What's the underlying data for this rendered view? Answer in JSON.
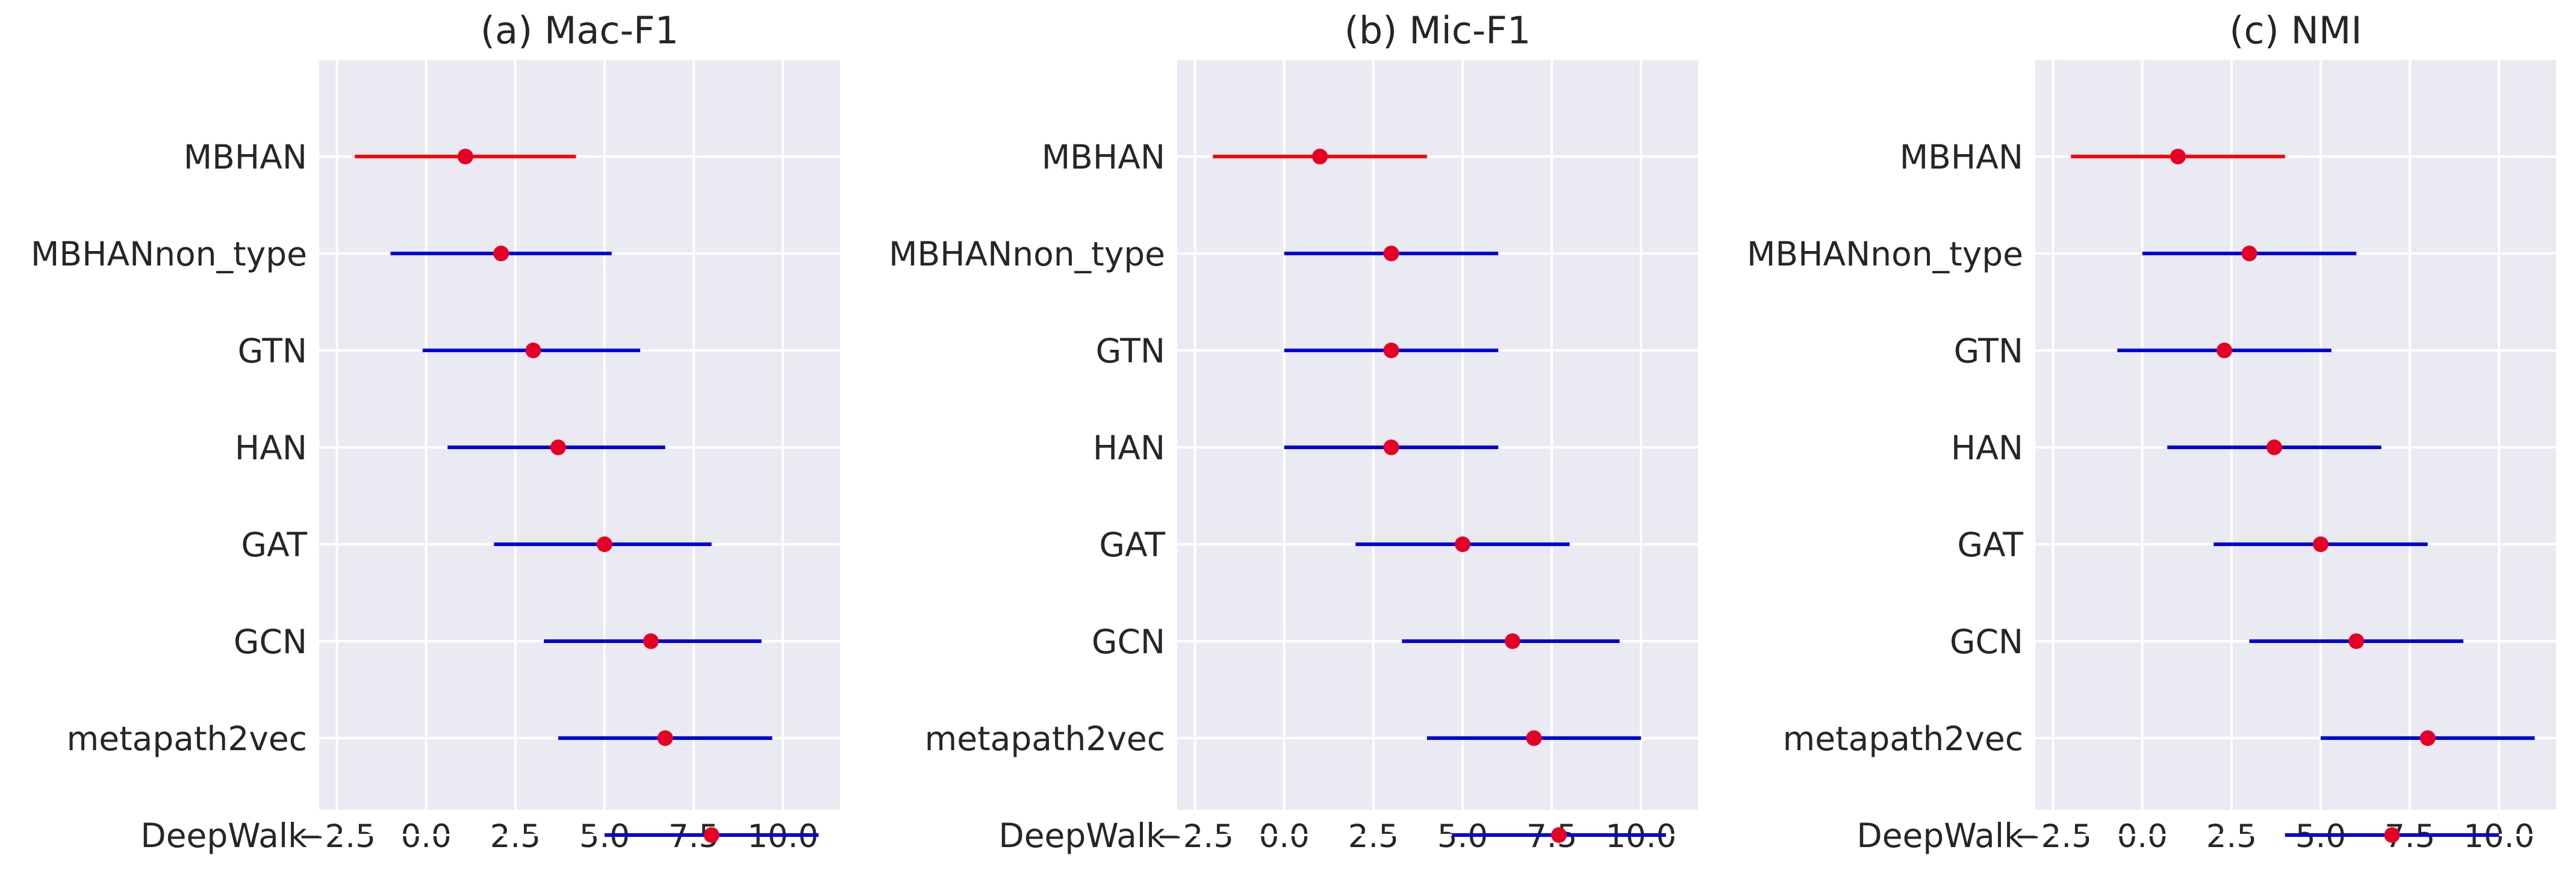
{
  "colors": {
    "panel_bg": "#eaeaf2",
    "grid": "#ffffff",
    "highlight": "#ff0000",
    "errorbar": "#0000dd",
    "point": "#e60026",
    "text": "#262626"
  },
  "chart_data": [
    {
      "type": "errorbar",
      "title": "(a) Mac-F1",
      "xlim": [
        -3.0,
        11.6
      ],
      "xticks": [
        -2.5,
        0.0,
        2.5,
        5.0,
        7.5,
        10.0
      ],
      "xtick_labels": [
        "−2.5",
        "0.0",
        "2.5",
        "5.0",
        "7.5",
        "10.0"
      ],
      "highlight": "MBHAN",
      "points": [
        {
          "label": "MBHAN",
          "center": 1.1,
          "low": -2.0,
          "high": 4.2
        },
        {
          "label": "MBHANnon_type",
          "center": 2.1,
          "low": -1.0,
          "high": 5.2
        },
        {
          "label": "GTN",
          "center": 3.0,
          "low": -0.1,
          "high": 6.0
        },
        {
          "label": "HAN",
          "center": 3.7,
          "low": 0.6,
          "high": 6.7
        },
        {
          "label": "GAT",
          "center": 5.0,
          "low": 1.9,
          "high": 8.0
        },
        {
          "label": "GCN",
          "center": 6.3,
          "low": 3.3,
          "high": 9.4
        },
        {
          "label": "metapath2vec",
          "center": 6.7,
          "low": 3.7,
          "high": 9.7
        },
        {
          "label": "DeepWalk",
          "center": 8.0,
          "low": 5.0,
          "high": 11.0
        }
      ]
    },
    {
      "type": "errorbar",
      "title": "(b) Mic-F1",
      "xlim": [
        -3.0,
        11.6
      ],
      "xticks": [
        -2.5,
        0.0,
        2.5,
        5.0,
        7.5,
        10.0
      ],
      "xtick_labels": [
        "−2.5",
        "0.0",
        "2.5",
        "5.0",
        "7.5",
        "10.0"
      ],
      "highlight": "MBHAN",
      "points": [
        {
          "label": "MBHAN",
          "center": 1.0,
          "low": -2.0,
          "high": 4.0
        },
        {
          "label": "MBHANnon_type",
          "center": 3.0,
          "low": 0.0,
          "high": 6.0
        },
        {
          "label": "GTN",
          "center": 3.0,
          "low": 0.0,
          "high": 6.0
        },
        {
          "label": "HAN",
          "center": 3.0,
          "low": 0.0,
          "high": 6.0
        },
        {
          "label": "GAT",
          "center": 5.0,
          "low": 2.0,
          "high": 8.0
        },
        {
          "label": "GCN",
          "center": 6.4,
          "low": 3.3,
          "high": 9.4
        },
        {
          "label": "metapath2vec",
          "center": 7.0,
          "low": 4.0,
          "high": 10.0
        },
        {
          "label": "DeepWalk",
          "center": 7.7,
          "low": 4.7,
          "high": 10.7
        }
      ]
    },
    {
      "type": "errorbar",
      "title": "(c) NMI",
      "xlim": [
        -3.0,
        11.6
      ],
      "xticks": [
        -2.5,
        0.0,
        2.5,
        5.0,
        7.5,
        10.0
      ],
      "xtick_labels": [
        "−2.5",
        "0.0",
        "2.5",
        "5.0",
        "7.5",
        "10.0"
      ],
      "highlight": "MBHAN",
      "points": [
        {
          "label": "MBHAN",
          "center": 1.0,
          "low": -2.0,
          "high": 4.0
        },
        {
          "label": "MBHANnon_type",
          "center": 3.0,
          "low": 0.0,
          "high": 6.0
        },
        {
          "label": "GTN",
          "center": 2.3,
          "low": -0.7,
          "high": 5.3
        },
        {
          "label": "HAN",
          "center": 3.7,
          "low": 0.7,
          "high": 6.7
        },
        {
          "label": "GAT",
          "center": 5.0,
          "low": 2.0,
          "high": 8.0
        },
        {
          "label": "GCN",
          "center": 6.0,
          "low": 3.0,
          "high": 9.0
        },
        {
          "label": "metapath2vec",
          "center": 8.0,
          "low": 5.0,
          "high": 11.0
        },
        {
          "label": "DeepWalk",
          "center": 7.0,
          "low": 4.0,
          "high": 10.0
        }
      ]
    }
  ]
}
